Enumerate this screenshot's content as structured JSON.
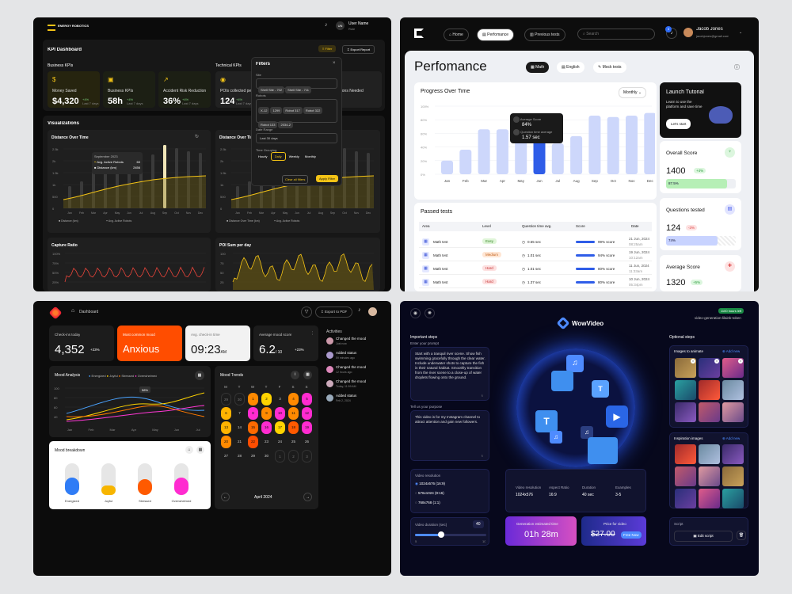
{
  "p1": {
    "logo": "ENERGY ROBOTICS",
    "user_name": "User Name",
    "user_sub": "Role",
    "user_initials": "UN",
    "title": "KPI Dashboard",
    "filter_btn": "Filter",
    "export_btn": "Export Report",
    "business_kpis": "Business KPIs",
    "technical_kpis": "Technical KPIs",
    "kpis": [
      {
        "label": "Money Saved",
        "value": "$4,320",
        "delta": "+4%",
        "delta_sub": "Last 7 days"
      },
      {
        "label": "Business KPIs",
        "value": "58h",
        "delta": "+4%",
        "delta_sub": "Last 7 days"
      },
      {
        "label": "Accident Risk Reduction",
        "value": "36%",
        "delta": "+4%",
        "delta_sub": "Last 7 days"
      },
      {
        "label": "POIs collected per",
        "value": "124",
        "delta": "+4%",
        "delta_sub": "Last 7 days"
      },
      {
        "label": "ections Needed",
        "value": "",
        "delta": "",
        "delta_sub": ""
      }
    ],
    "visualizations": "Visualizations",
    "chart1_title": "Distance Over Time",
    "chart2_title": "Distance Over Tim",
    "tooltip_title": "September 2023",
    "tooltip_rows": [
      {
        "label": "Avg. Active Robots",
        "value": "60"
      },
      {
        "label": "Distance (km)",
        "value": "2456"
      }
    ],
    "months": [
      "Jan",
      "Feb",
      "Mar",
      "Apr",
      "May",
      "Jun",
      "Jul",
      "Aug",
      "Sep",
      "Oct",
      "Nov",
      "Dec"
    ],
    "yticks": [
      "2.5k",
      "2k",
      "1.5k",
      "1k",
      "500",
      "0"
    ],
    "legend": [
      "Distance (km)",
      "Avg. Active Robots"
    ],
    "legend2": [
      "Distance Over Time (km)",
      "Avg. Active Robots"
    ],
    "capture_title": "Capture Ratio",
    "capture_yticks": [
      "100%",
      "75%",
      "50%",
      "25%"
    ],
    "poi_title": "POI Sum per day",
    "poi_yticks": [
      "100",
      "75",
      "50",
      "25"
    ],
    "filters": {
      "title": "Filters",
      "site_label": "Site",
      "sites": [
        "Shell Site - 702",
        "Shell Site - 711"
      ],
      "robots_label": "Robots",
      "robots": [
        "X-12",
        "1299",
        "Robot 317",
        "Robot 322",
        "Robot 133",
        "2034-2"
      ],
      "date_label": "Date Range",
      "date_value": "Last 30 days",
      "grouping_label": "Time Grouping",
      "groupings": [
        "Hourly",
        "Daily",
        "Weekly",
        "Monthly"
      ],
      "clear_btn": "Clear all filters",
      "apply_btn": "Apply Filter"
    }
  },
  "p2": {
    "nav": [
      "Home",
      "Perfomance",
      "Previous tests"
    ],
    "search_placeholder": "Search",
    "notif_count": "3",
    "user_name": "Jacob Jones",
    "user_email": "jacobjones@gmail.com",
    "title": "Perfomance",
    "tabs": [
      "Math",
      "English",
      "Mock tests"
    ],
    "progress_title": "Progress Over Time",
    "period": "Monthly",
    "yticks": [
      "100%",
      "80%",
      "60%",
      "40%",
      "20%",
      "0%"
    ],
    "months": [
      "Jan",
      "Feb",
      "Mar",
      "Apr",
      "May",
      "Jun",
      "Jul",
      "Aug",
      "Sep",
      "Oct",
      "Nov",
      "Dec"
    ],
    "tooltip": {
      "l1": "Average Score",
      "v1": "84%",
      "l2": "Question time average",
      "v2": "1.57 sec"
    },
    "passed_title": "Passed tests",
    "table_head": [
      "Area",
      "Level",
      "Question time avg.",
      "Score",
      "Date"
    ],
    "rows": [
      {
        "area": "Math test",
        "level": "Easy",
        "time": "0.55 sec",
        "score": "99% score",
        "date": "21 Jun, 2024",
        "time2": "08:25am"
      },
      {
        "area": "Math test",
        "level": "Medium",
        "time": "1.01 sec",
        "score": "94% score",
        "date": "19 Jun, 2024",
        "time2": "10:12am"
      },
      {
        "area": "Math test",
        "level": "Hard",
        "time": "1.01 sec",
        "score": "80% score",
        "date": "11 Jun, 2024",
        "time2": "11:33am"
      },
      {
        "area": "Math test",
        "level": "Hard",
        "time": "1.37 sec",
        "score": "80% score",
        "date": "10 Jun, 2024",
        "time2": "05:34pm"
      }
    ],
    "launch_title": "Launch Tutorial",
    "launch_text": "Learn to use the platform and save time",
    "launch_btn": "Let's start",
    "overall_title": "Overall Score",
    "overall_value": "1400",
    "overall_delta": "+4%",
    "overall_bar": "87.5%",
    "questions_title": "Questions tested",
    "questions_value": "124",
    "questions_delta": "-3%",
    "questions_bar": "74%",
    "avg_title": "Average Score",
    "avg_value": "1320",
    "avg_delta": "+5%",
    "chart_data": {
      "type": "bar",
      "categories": [
        "Jan",
        "Feb",
        "Mar",
        "Apr",
        "May",
        "Jun",
        "Jul",
        "Aug",
        "Sep",
        "Oct",
        "Nov",
        "Dec"
      ],
      "values": [
        20,
        36,
        66,
        66,
        70,
        57,
        45,
        56,
        86,
        84,
        86,
        90
      ],
      "ylim": [
        0,
        100
      ],
      "highlight": "Jun"
    }
  },
  "p3": {
    "dashboard": "Dashboard",
    "export_btn": "Export to PDF",
    "checkins_label": "Check-ins today",
    "checkins_value": "4,352",
    "checkins_delta": "+23%",
    "mood_label": "Most common mood",
    "mood_value": "Anxious",
    "time_label": "Avg. check-in time",
    "time_value": "09:23",
    "time_suffix": "AM",
    "score_label": "Average mood score",
    "score_value": "6.2",
    "score_suffix": "/ 10",
    "score_delta": "+23%",
    "analysis_title": "Mood Analysis",
    "analysis_legend": [
      "Energized",
      "Joyful",
      "Stressed",
      "Overwhelmed"
    ],
    "analysis_yticks": [
      "100",
      "80",
      "60",
      "40"
    ],
    "analysis_months": [
      "Jan",
      "Feb",
      "Mar",
      "Apr",
      "May",
      "Jun",
      "Jul"
    ],
    "analysis_tip": "58%",
    "breakdown_title": "Mood breakdown",
    "breakdown": [
      "Energized",
      "Joyful",
      "Stressed",
      "Overwhelmed"
    ],
    "breakdown_levels": [
      0.55,
      0.3,
      0.5,
      0.55
    ],
    "trends_title": "Mood Trends",
    "weekdays": [
      "M",
      "T",
      "W",
      "T",
      "F",
      "S",
      "S"
    ],
    "month": "April 2024",
    "days": [
      "",
      "",
      "",
      "",
      "",
      "",
      "",
      "29",
      "30",
      "1",
      "2",
      "3",
      "4",
      "5",
      "6",
      "7",
      "8",
      "9",
      "10",
      "11",
      "12",
      "13",
      "14",
      "15",
      "16",
      "17",
      "18",
      "19",
      "20",
      "21",
      "22",
      "23",
      "24",
      "25",
      "26",
      "27",
      "28",
      "29",
      "30",
      "1",
      "2",
      "3"
    ],
    "activities_title": "Activities",
    "activities": [
      {
        "text": "Changed the mood",
        "time": "Just now"
      },
      {
        "text": "Added status",
        "time": "59 minutes ago"
      },
      {
        "text": "Changed the mood",
        "time": "12 hours ago"
      },
      {
        "text": "Changed the mood",
        "time": "Today, 11:59 AM"
      },
      {
        "text": "Added status",
        "time": "Feb 2, 2024"
      }
    ]
  },
  "p4": {
    "badge": "1100 hours left",
    "project": "video-generation-lilaink-token",
    "brand": "WowVideo",
    "steps_title": "Important steps",
    "prompt_label": "Enter your prompt",
    "prompt_text": "Start with a tranquil river scene. Show fish swimming gracefully through the clear water. Include underwater shots to capture the fish in their natural habitat. Smoothly transition from the river scene to a close-up of water droplets flowing onto the ground.",
    "purpose_label": "Tell us your purpose",
    "purpose_text": "This video is for my Instagram channel to attract attention and gain new followers.",
    "resolution_label": "Video resolution",
    "resolutions": [
      "1024x576 (16:9)",
      "576x1024 (9:16)",
      "768x768 (1:1)"
    ],
    "duration_label": "Video duration (sec)",
    "duration_value": "40",
    "duration_min": "5",
    "duration_max": "10",
    "duration_level": 0.38,
    "summary": [
      {
        "label": "Video resolution",
        "value": "1024x576"
      },
      {
        "label": "Aspect Ratio",
        "value": "16:9"
      },
      {
        "label": "Duration",
        "value": "40 sec"
      },
      {
        "label": "Examples",
        "value": "3-5"
      }
    ],
    "gen_label": "Generation estimated time",
    "gen_value": "01h 28m",
    "price_label": "Price for video",
    "price_value": "$27.00",
    "free_btn": "Free Now",
    "optional_title": "Optional steps",
    "animate_label": "Images to animate",
    "add_new": "Add new",
    "inspiration_label": "Inspiration images",
    "script_label": "Script",
    "edit_script": "Edit script"
  }
}
